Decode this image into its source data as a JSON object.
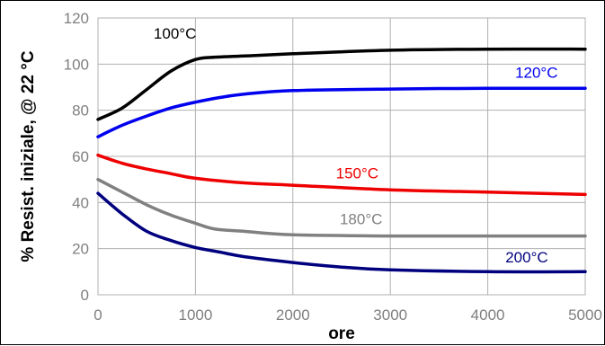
{
  "chart_data": {
    "type": "line",
    "title": "",
    "xlabel": "ore",
    "ylabel": "% Resist. iniziale, @ 22 °C",
    "xlim": [
      0,
      5000
    ],
    "ylim": [
      0,
      120
    ],
    "x_ticks": [
      "0",
      "1000",
      "2000",
      "3000",
      "4000",
      "5000"
    ],
    "y_ticks": [
      "0",
      "20",
      "40",
      "60",
      "80",
      "100",
      "120"
    ],
    "grid": true,
    "legend": "inline labels",
    "series": [
      {
        "name": "100°C",
        "color": "#000000",
        "points": [
          [
            0,
            76
          ],
          [
            250,
            81
          ],
          [
            500,
            89
          ],
          [
            750,
            97
          ],
          [
            1000,
            102
          ],
          [
            1200,
            103
          ],
          [
            1500,
            103.5
          ],
          [
            2000,
            104.5
          ],
          [
            3000,
            106
          ],
          [
            4000,
            106.5
          ],
          [
            5000,
            106.5
          ]
        ]
      },
      {
        "name": "120°C",
        "color": "#0000ee",
        "points": [
          [
            0,
            68.5
          ],
          [
            250,
            73.5
          ],
          [
            500,
            77.5
          ],
          [
            750,
            81
          ],
          [
            1000,
            83.5
          ],
          [
            1250,
            85.5
          ],
          [
            1500,
            87
          ],
          [
            2000,
            88.5
          ],
          [
            3000,
            89.2
          ],
          [
            4000,
            89.5
          ],
          [
            5000,
            89.5
          ]
        ]
      },
      {
        "name": "150°C",
        "color": "#ee0000",
        "points": [
          [
            0,
            60.5
          ],
          [
            250,
            57
          ],
          [
            500,
            54.5
          ],
          [
            750,
            52.5
          ],
          [
            1000,
            50.5
          ],
          [
            1500,
            48.5
          ],
          [
            2000,
            47.5
          ],
          [
            3000,
            45.5
          ],
          [
            4000,
            44.5
          ],
          [
            5000,
            43.5
          ]
        ]
      },
      {
        "name": "180°C",
        "color": "#808080",
        "points": [
          [
            0,
            50
          ],
          [
            250,
            44.5
          ],
          [
            500,
            39
          ],
          [
            750,
            34.5
          ],
          [
            1000,
            31
          ],
          [
            1200,
            28.5
          ],
          [
            1500,
            27.5
          ],
          [
            2000,
            26
          ],
          [
            3000,
            25.5
          ],
          [
            4000,
            25.5
          ],
          [
            5000,
            25.5
          ]
        ]
      },
      {
        "name": "200°C",
        "color": "#00007f",
        "points": [
          [
            0,
            44
          ],
          [
            250,
            35
          ],
          [
            500,
            27.5
          ],
          [
            750,
            23.5
          ],
          [
            1000,
            20.5
          ],
          [
            1250,
            18.5
          ],
          [
            1500,
            16.5
          ],
          [
            2000,
            14
          ],
          [
            2500,
            12
          ],
          [
            3000,
            10.8
          ],
          [
            4000,
            10
          ],
          [
            5000,
            10
          ]
        ]
      }
    ]
  }
}
